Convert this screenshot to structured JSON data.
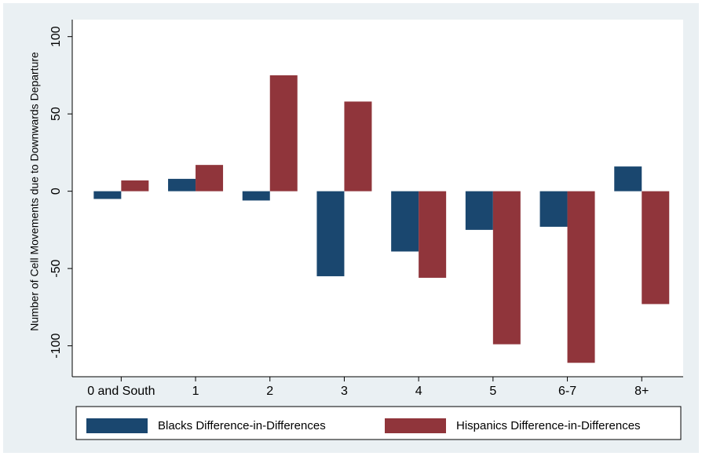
{
  "chart_data": {
    "type": "bar",
    "y_label": "Number of Cell Movements due to Downwards Departure",
    "categories": [
      "0 and South",
      "1",
      "2",
      "3",
      "4",
      "5",
      "6-7",
      "8+"
    ],
    "series": [
      {
        "name": "Blacks Difference-in-Differences",
        "color": "#1a476f",
        "values": [
          -5,
          8,
          -6,
          -55,
          -39,
          -25,
          -23,
          16
        ]
      },
      {
        "name": "Hispanics Difference-in-Differences",
        "color": "#90353b",
        "values": [
          7,
          17,
          75,
          58,
          -56,
          -99,
          -111,
          -73
        ]
      }
    ],
    "ylim": [
      -120,
      111
    ],
    "yticks": [
      -100,
      -50,
      0,
      50,
      100
    ],
    "grid": false,
    "legend": "bottom"
  }
}
